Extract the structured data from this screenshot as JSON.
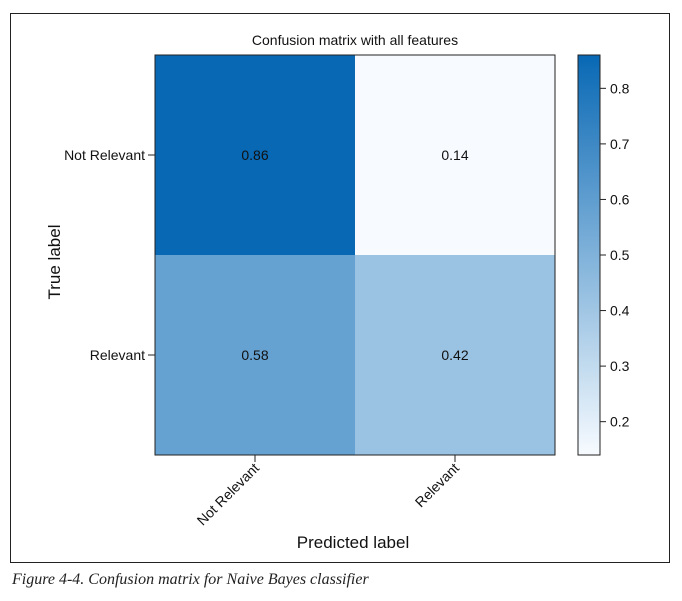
{
  "chart_data": {
    "type": "heatmap",
    "title": "Confusion matrix with all features",
    "xlabel": "Predicted label",
    "ylabel": "True label",
    "x_categories": [
      "Not Relevant",
      "Relevant"
    ],
    "y_categories": [
      "Not Relevant",
      "Relevant"
    ],
    "values": [
      [
        0.86,
        0.14
      ],
      [
        0.58,
        0.42
      ]
    ],
    "cell_labels": [
      [
        "0.86",
        "0.14"
      ],
      [
        "0.58",
        "0.42"
      ]
    ],
    "colorbar": {
      "min": 0.14,
      "max": 0.86,
      "ticks": [
        0.2,
        0.3,
        0.4,
        0.5,
        0.6,
        0.7,
        0.8
      ],
      "tick_labels": [
        "0.2",
        "0.3",
        "0.4",
        "0.5",
        "0.6",
        "0.7",
        "0.8"
      ],
      "low_color": "#f7fbff",
      "high_color": "#0868b4"
    },
    "grid": false
  },
  "caption": "Figure 4-4. Confusion matrix for Naive Bayes classifier"
}
